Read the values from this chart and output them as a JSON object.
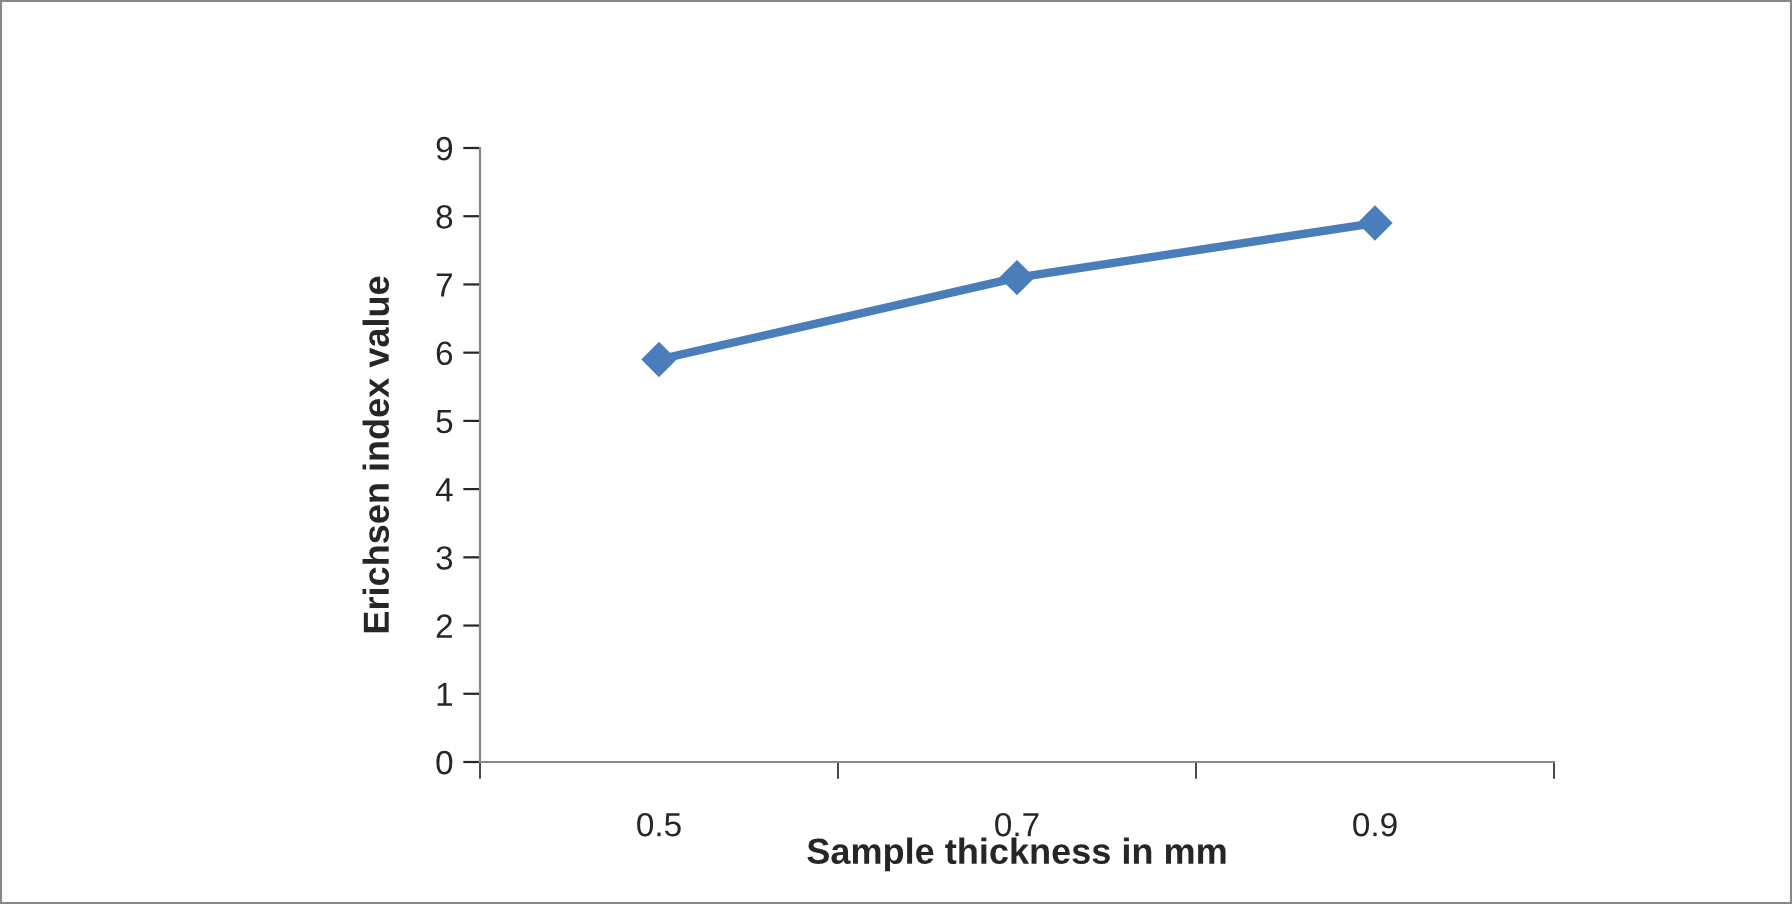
{
  "chart_data": {
    "type": "line",
    "xlabel": "Sample thickness in mm",
    "ylabel": "Erichsen index value",
    "categories": [
      "0.5",
      "0.7",
      "0.9"
    ],
    "series": [
      {
        "color": "#4a7ebb",
        "values": [
          5.9,
          7.1,
          7.9
        ]
      }
    ],
    "ylim": [
      0,
      9
    ],
    "yticks": [
      0,
      1,
      2,
      3,
      4,
      5,
      6,
      7,
      8,
      9
    ],
    "grid": false,
    "legend": false,
    "marker": "diamond",
    "line_style": "solid"
  }
}
